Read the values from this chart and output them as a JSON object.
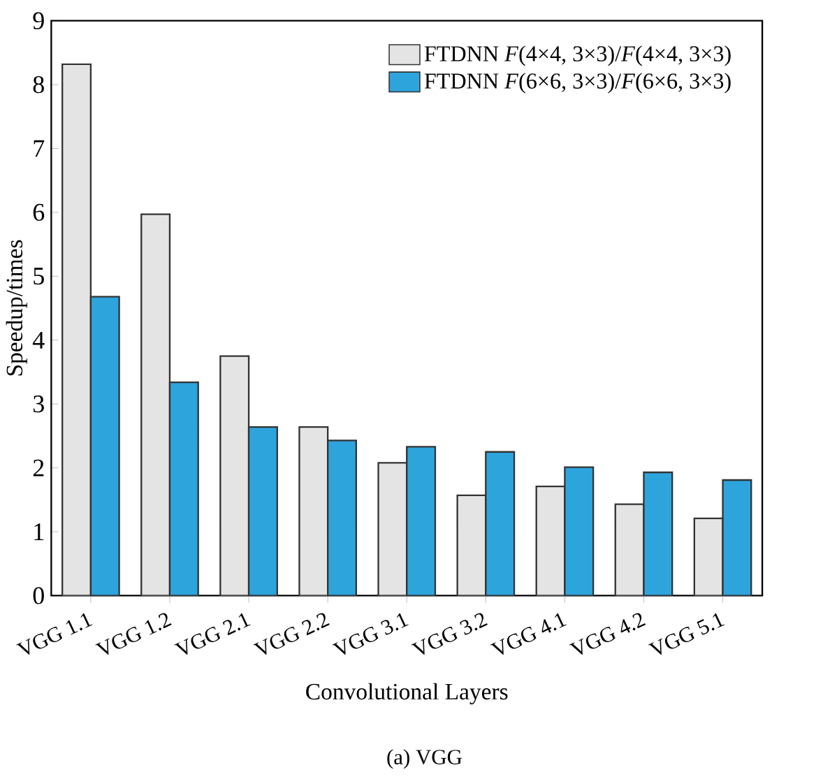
{
  "chart_data": {
    "type": "bar",
    "xlabel": "Convolutional Layers",
    "ylabel": "Speedup/times",
    "categories": [
      "VGG 1.1",
      "VGG 1.2",
      "VGG 2.1",
      "VGG 2.2",
      "VGG 3.1",
      "VGG 3.2",
      "VGG 4.1",
      "VGG 4.2",
      "VGG 5.1"
    ],
    "series": [
      {
        "name": "FTDNN *F*(4×4, 3×3)/*F*(4×4, 3×3)",
        "color": "#e4e4e4",
        "values": [
          8.32,
          5.97,
          3.75,
          2.64,
          2.08,
          1.57,
          1.71,
          1.43,
          1.21
        ]
      },
      {
        "name": "FTDNN *F*(6×6, 3×3)/*F*(6×6, 3×3)",
        "color": "#2ea4dd",
        "values": [
          4.68,
          3.34,
          2.64,
          2.43,
          2.33,
          2.25,
          2.01,
          1.93,
          1.81
        ]
      }
    ],
    "ylim": [
      0,
      9
    ],
    "yticks": [
      0,
      1,
      2,
      3,
      4,
      5,
      6,
      7,
      8,
      9
    ],
    "grid": false,
    "legend": "top right",
    "annotations": [
      "(a)  VGG"
    ]
  }
}
